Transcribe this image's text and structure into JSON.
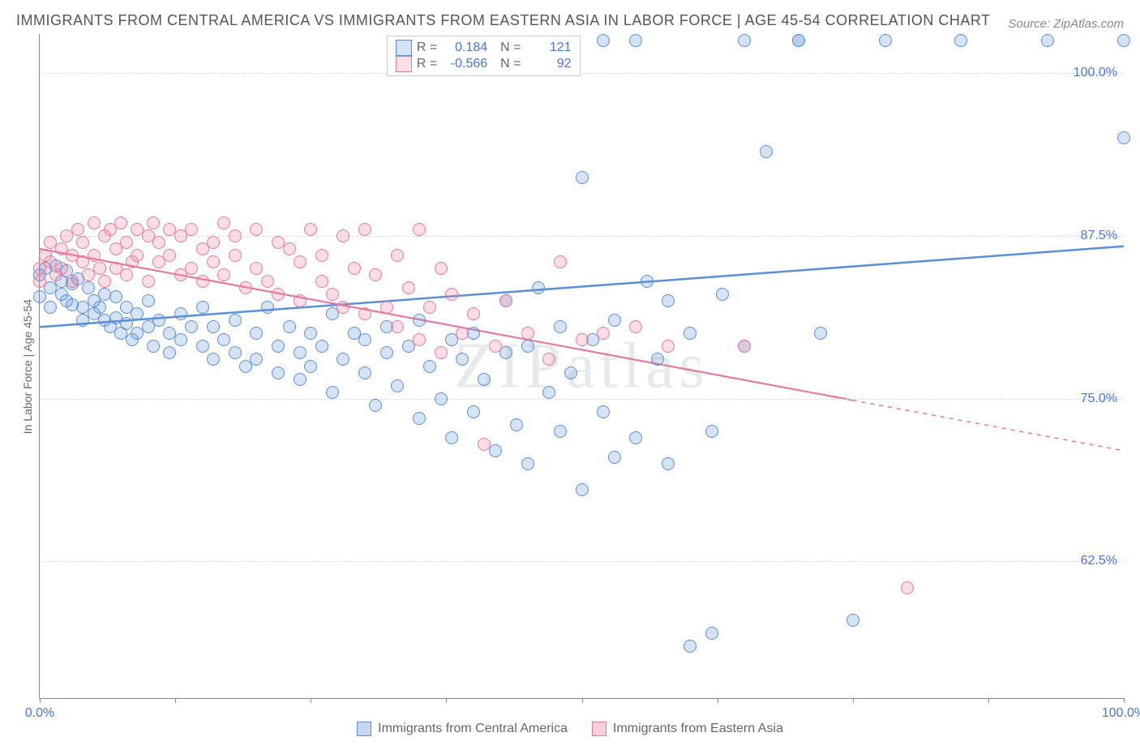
{
  "title": "IMMIGRANTS FROM CENTRAL AMERICA VS IMMIGRANTS FROM EASTERN ASIA IN LABOR FORCE | AGE 45-54 CORRELATION CHART",
  "source_label": "Source: ",
  "source_name": "ZipAtlas.com",
  "watermark": "ZIPatlas",
  "ylabel": "In Labor Force | Age 45-54",
  "chart": {
    "type": "scatter",
    "background_color": "#ffffff",
    "grid_color": "#dddddd",
    "axis_color": "#888888",
    "tick_label_color": "#4a76d0",
    "xlim": [
      0,
      100
    ],
    "ylim": [
      52,
      103
    ],
    "x_ticks": [
      0,
      12.5,
      25,
      37.5,
      50,
      62.5,
      75,
      87.5,
      100
    ],
    "x_tick_labels": {
      "0": "0.0%",
      "100": "100.0%"
    },
    "y_ticks": [
      62.5,
      75.0,
      87.5,
      100.0
    ],
    "y_tick_labels": [
      "62.5%",
      "75.0%",
      "87.5%",
      "100.0%"
    ],
    "marker_radius": 8,
    "marker_stroke_width": 1.5,
    "marker_fill_opacity": 0.25,
    "series": [
      {
        "name": "Immigrants from Central America",
        "color": "#5b8fd6",
        "fill": "rgba(91,143,214,0.25)",
        "R": "0.184",
        "N": "121",
        "trend": {
          "x1": 0,
          "y1": 80.5,
          "x2": 100,
          "y2": 86.7,
          "solid_until_x": 100,
          "width": 2.5
        },
        "points": [
          [
            0,
            84.5
          ],
          [
            0,
            82.8
          ],
          [
            0.5,
            85.0
          ],
          [
            1,
            83.5
          ],
          [
            1,
            82.0
          ],
          [
            1.5,
            85.2
          ],
          [
            2,
            84.0
          ],
          [
            2,
            83.0
          ],
          [
            2.5,
            84.8
          ],
          [
            2.5,
            82.5
          ],
          [
            3,
            83.8
          ],
          [
            3,
            82.2
          ],
          [
            3.5,
            84.2
          ],
          [
            4,
            82.0
          ],
          [
            4,
            81.0
          ],
          [
            4.5,
            83.5
          ],
          [
            5,
            82.5
          ],
          [
            5,
            81.5
          ],
          [
            5.5,
            82.0
          ],
          [
            6,
            83.0
          ],
          [
            6,
            81.0
          ],
          [
            6.5,
            80.5
          ],
          [
            7,
            82.8
          ],
          [
            7,
            81.2
          ],
          [
            7.5,
            80.0
          ],
          [
            8,
            82.0
          ],
          [
            8,
            80.8
          ],
          [
            8.5,
            79.5
          ],
          [
            9,
            81.5
          ],
          [
            9,
            80.0
          ],
          [
            10,
            82.5
          ],
          [
            10,
            80.5
          ],
          [
            10.5,
            79.0
          ],
          [
            11,
            81.0
          ],
          [
            12,
            80.0
          ],
          [
            12,
            78.5
          ],
          [
            13,
            81.5
          ],
          [
            13,
            79.5
          ],
          [
            14,
            80.5
          ],
          [
            15,
            79.0
          ],
          [
            15,
            82.0
          ],
          [
            16,
            78.0
          ],
          [
            16,
            80.5
          ],
          [
            17,
            79.5
          ],
          [
            18,
            81.0
          ],
          [
            18,
            78.5
          ],
          [
            19,
            77.5
          ],
          [
            20,
            80.0
          ],
          [
            20,
            78.0
          ],
          [
            21,
            82.0
          ],
          [
            22,
            79.0
          ],
          [
            22,
            77.0
          ],
          [
            23,
            80.5
          ],
          [
            24,
            78.5
          ],
          [
            24,
            76.5
          ],
          [
            25,
            80.0
          ],
          [
            25,
            77.5
          ],
          [
            26,
            79.0
          ],
          [
            27,
            81.5
          ],
          [
            27,
            75.5
          ],
          [
            28,
            78.0
          ],
          [
            29,
            80.0
          ],
          [
            30,
            77.0
          ],
          [
            30,
            79.5
          ],
          [
            31,
            74.5
          ],
          [
            32,
            78.5
          ],
          [
            32,
            80.5
          ],
          [
            33,
            76.0
          ],
          [
            34,
            79.0
          ],
          [
            35,
            73.5
          ],
          [
            35,
            81.0
          ],
          [
            36,
            77.5
          ],
          [
            37,
            75.0
          ],
          [
            38,
            79.5
          ],
          [
            38,
            72.0
          ],
          [
            39,
            78.0
          ],
          [
            40,
            74.0
          ],
          [
            40,
            80.0
          ],
          [
            41,
            76.5
          ],
          [
            42,
            71.0
          ],
          [
            43,
            78.5
          ],
          [
            43,
            82.5
          ],
          [
            44,
            73.0
          ],
          [
            45,
            79.0
          ],
          [
            45,
            70.0
          ],
          [
            46,
            83.5
          ],
          [
            47,
            75.5
          ],
          [
            48,
            80.5
          ],
          [
            48,
            72.5
          ],
          [
            49,
            77.0
          ],
          [
            50,
            68.0
          ],
          [
            50,
            92.0
          ],
          [
            51,
            79.5
          ],
          [
            52,
            74.0
          ],
          [
            52,
            102.5
          ],
          [
            53,
            81.0
          ],
          [
            53,
            70.5
          ],
          [
            55,
            72.0
          ],
          [
            55,
            102.5
          ],
          [
            56,
            84.0
          ],
          [
            57,
            78.0
          ],
          [
            58,
            82.5
          ],
          [
            58,
            70.0
          ],
          [
            60,
            80.0
          ],
          [
            60,
            56.0
          ],
          [
            62,
            72.5
          ],
          [
            62,
            57.0
          ],
          [
            63,
            83.0
          ],
          [
            65,
            79.0
          ],
          [
            65,
            102.5
          ],
          [
            67,
            94.0
          ],
          [
            70,
            102.5
          ],
          [
            70,
            102.5
          ],
          [
            72,
            80.0
          ],
          [
            75,
            58.0
          ],
          [
            78,
            102.5
          ],
          [
            85,
            102.5
          ],
          [
            93,
            102.5
          ],
          [
            100,
            102.5
          ],
          [
            100,
            95.0
          ]
        ]
      },
      {
        "name": "Immigrants from Eastern Asia",
        "color": "#e67a9a",
        "fill": "rgba(230,122,154,0.25)",
        "R": "-0.566",
        "N": "92",
        "trend": {
          "x1": 0,
          "y1": 86.5,
          "x2": 100,
          "y2": 71.0,
          "solid_until_x": 75,
          "width": 2.2
        },
        "points": [
          [
            0,
            85.0
          ],
          [
            0,
            84.0
          ],
          [
            0.5,
            86.0
          ],
          [
            1,
            85.5
          ],
          [
            1,
            87.0
          ],
          [
            1.5,
            84.5
          ],
          [
            2,
            86.5
          ],
          [
            2,
            85.0
          ],
          [
            2.5,
            87.5
          ],
          [
            3,
            84.0
          ],
          [
            3,
            86.0
          ],
          [
            3.5,
            88.0
          ],
          [
            4,
            85.5
          ],
          [
            4,
            87.0
          ],
          [
            4.5,
            84.5
          ],
          [
            5,
            88.5
          ],
          [
            5,
            86.0
          ],
          [
            5.5,
            85.0
          ],
          [
            6,
            87.5
          ],
          [
            6,
            84.0
          ],
          [
            6.5,
            88.0
          ],
          [
            7,
            86.5
          ],
          [
            7,
            85.0
          ],
          [
            7.5,
            88.5
          ],
          [
            8,
            84.5
          ],
          [
            8,
            87.0
          ],
          [
            8.5,
            85.5
          ],
          [
            9,
            88.0
          ],
          [
            9,
            86.0
          ],
          [
            10,
            87.5
          ],
          [
            10,
            84.0
          ],
          [
            10.5,
            88.5
          ],
          [
            11,
            85.5
          ],
          [
            11,
            87.0
          ],
          [
            12,
            86.0
          ],
          [
            12,
            88.0
          ],
          [
            13,
            84.5
          ],
          [
            13,
            87.5
          ],
          [
            14,
            85.0
          ],
          [
            14,
            88.0
          ],
          [
            15,
            86.5
          ],
          [
            15,
            84.0
          ],
          [
            16,
            87.0
          ],
          [
            16,
            85.5
          ],
          [
            17,
            88.5
          ],
          [
            17,
            84.5
          ],
          [
            18,
            86.0
          ],
          [
            18,
            87.5
          ],
          [
            19,
            83.5
          ],
          [
            20,
            88.0
          ],
          [
            20,
            85.0
          ],
          [
            21,
            84.0
          ],
          [
            22,
            87.0
          ],
          [
            22,
            83.0
          ],
          [
            23,
            86.5
          ],
          [
            24,
            85.5
          ],
          [
            24,
            82.5
          ],
          [
            25,
            88.0
          ],
          [
            26,
            84.0
          ],
          [
            26,
            86.0
          ],
          [
            27,
            83.0
          ],
          [
            28,
            87.5
          ],
          [
            28,
            82.0
          ],
          [
            29,
            85.0
          ],
          [
            30,
            88.0
          ],
          [
            30,
            81.5
          ],
          [
            31,
            84.5
          ],
          [
            32,
            82.0
          ],
          [
            33,
            86.0
          ],
          [
            33,
            80.5
          ],
          [
            34,
            83.5
          ],
          [
            35,
            88.0
          ],
          [
            35,
            79.5
          ],
          [
            36,
            82.0
          ],
          [
            37,
            85.0
          ],
          [
            37,
            78.5
          ],
          [
            38,
            83.0
          ],
          [
            39,
            80.0
          ],
          [
            40,
            81.5
          ],
          [
            41,
            71.5
          ],
          [
            42,
            79.0
          ],
          [
            43,
            82.5
          ],
          [
            45,
            80.0
          ],
          [
            47,
            78.0
          ],
          [
            48,
            85.5
          ],
          [
            50,
            79.5
          ],
          [
            52,
            80.0
          ],
          [
            55,
            80.5
          ],
          [
            58,
            79.0
          ],
          [
            65,
            79.0
          ],
          [
            80,
            60.5
          ]
        ]
      }
    ]
  },
  "stats_legend": {
    "R_label": "R =",
    "N_label": "N ="
  },
  "bottom_legend": [
    {
      "label": "Immigrants from Central America",
      "color": "#5b8fd6",
      "fill": "rgba(91,143,214,0.35)"
    },
    {
      "label": "Immigrants from Eastern Asia",
      "color": "#e67a9a",
      "fill": "rgba(230,122,154,0.35)"
    }
  ]
}
